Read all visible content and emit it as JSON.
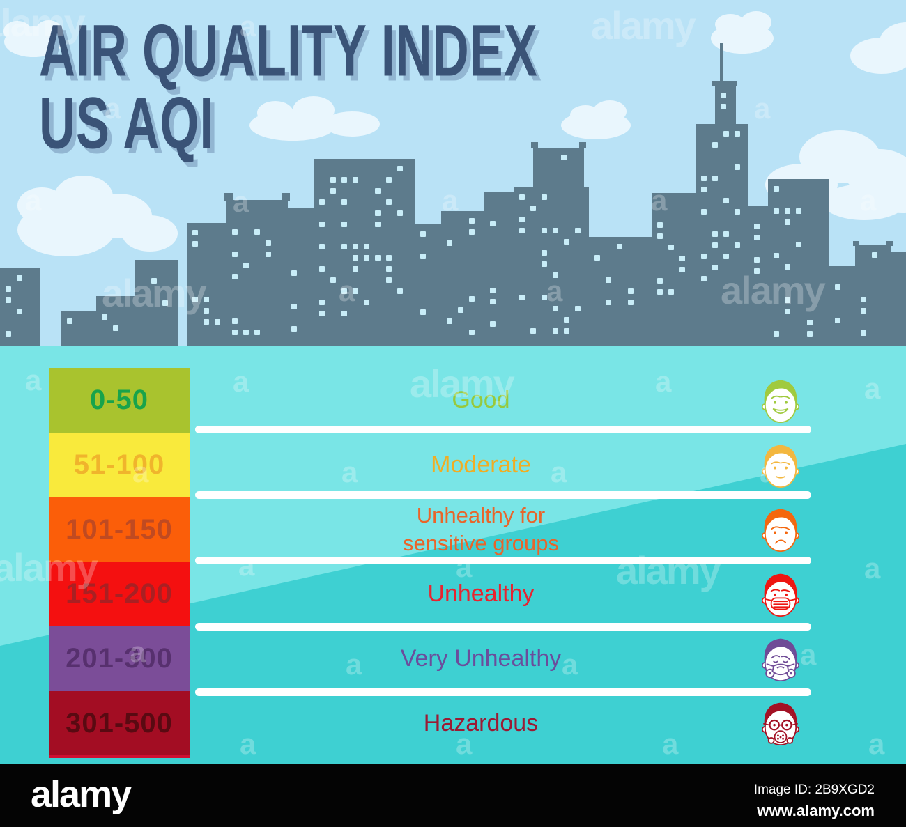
{
  "title": {
    "line1": "AIR QUALITY INDEX",
    "line2": "US AQI"
  },
  "levels": [
    {
      "range": "0-50",
      "label": "Good",
      "face": "happy-face-icon",
      "colors": {
        "box": "#a9c32e",
        "range_text": "#18a34b",
        "label": "#97c93d",
        "face": "#a0ca3e"
      }
    },
    {
      "range": "51-100",
      "label": "Moderate",
      "face": "neutral-face-icon",
      "colors": {
        "box": "#f9ea3c",
        "range_text": "#f0b42c",
        "label": "#f0ad24",
        "face": "#f3b73f"
      }
    },
    {
      "range": "101-150",
      "label": "Unhealthy for",
      "label_line2": "sensitive groups",
      "face": "sad-face-icon",
      "colors": {
        "box": "#fb5e09",
        "range_text": "#c04a21",
        "label": "#e9652a",
        "face": "#f4670e"
      }
    },
    {
      "range": "151-200",
      "label": "Unhealthy",
      "face": "mask-face-icon",
      "colors": {
        "box": "#f41010",
        "range_text": "#a92023",
        "label": "#e8232f",
        "face": "#ee1511"
      }
    },
    {
      "range": "201-300",
      "label": "Very Unhealthy",
      "face": "respirator-face-icon",
      "colors": {
        "box": "#7b4d98",
        "range_text": "#57306e",
        "label": "#6b4d9c",
        "face": "#6f4b96"
      }
    },
    {
      "range": "301-500",
      "label": "Hazardous",
      "face": "gas-mask-face-icon",
      "colors": {
        "box": "#a30d23",
        "range_text": "#590a12",
        "label": "#9b1b34",
        "face": "#a31124"
      }
    }
  ],
  "footer": {
    "logo": "alamy",
    "image_id": "Image ID: 2B9XGD2",
    "url": "www.alamy.com"
  },
  "watermark": {
    "word": "alamy",
    "letter": "a"
  },
  "scene": {
    "sky": "#b9e2f6",
    "cloud": "#e9f6fd",
    "building": "#5d7b8c",
    "window": "#c9edf8",
    "teal_light": "#79e5e6",
    "teal_dark": "#3ed0d2",
    "divider": "#ffffff",
    "title_color": "#3a5377",
    "title_shadow": "#92b6d2"
  }
}
